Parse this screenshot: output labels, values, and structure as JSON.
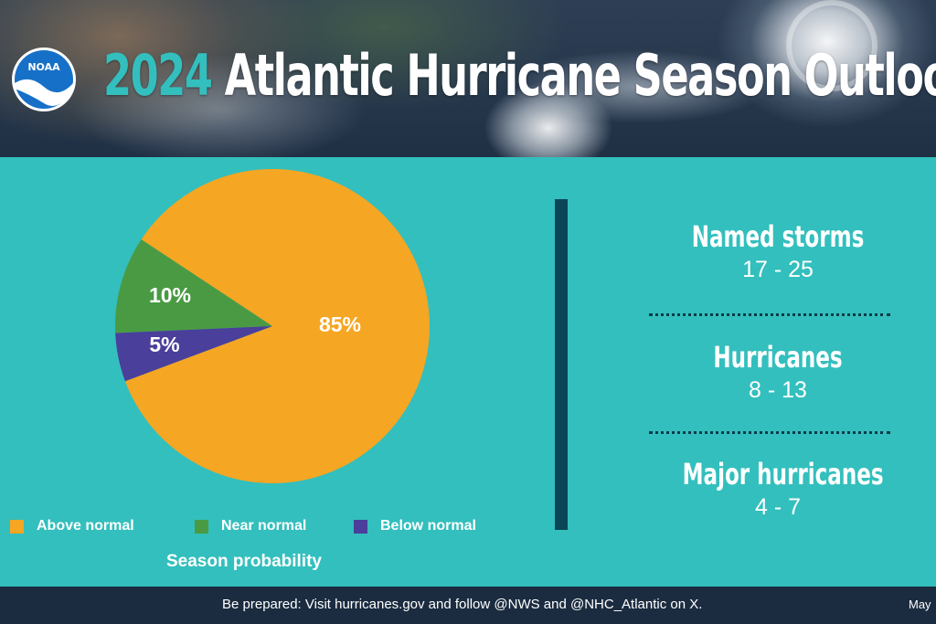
{
  "header": {
    "year": "2024",
    "title": "Atlantic Hurricane Season Outlook",
    "logo_text": "NOAA"
  },
  "chart_data": {
    "type": "pie",
    "title": "Season probability",
    "slices": [
      {
        "label": "Above normal",
        "value": 85,
        "display": "85%",
        "color": "#f5a623"
      },
      {
        "label": "Near normal",
        "value": 10,
        "display": "10%",
        "color": "#4a9a43"
      },
      {
        "label": "Below normal",
        "value": 5,
        "display": "5%",
        "color": "#4a3f9b"
      }
    ],
    "legend_position": "bottom"
  },
  "stats": [
    {
      "label": "Named storms",
      "value": "17 - 25"
    },
    {
      "label": "Hurricanes",
      "value": "8 - 13"
    },
    {
      "label": "Major hurricanes",
      "value": "4 - 7"
    }
  ],
  "footer": {
    "text": "Be prepared: Visit hurricanes.gov and follow @NWS and @NHC_Atlantic on X.",
    "date": "May"
  },
  "colors": {
    "background": "#33bfbd",
    "divider": "#0b4558",
    "footer": "#1b2c40"
  }
}
